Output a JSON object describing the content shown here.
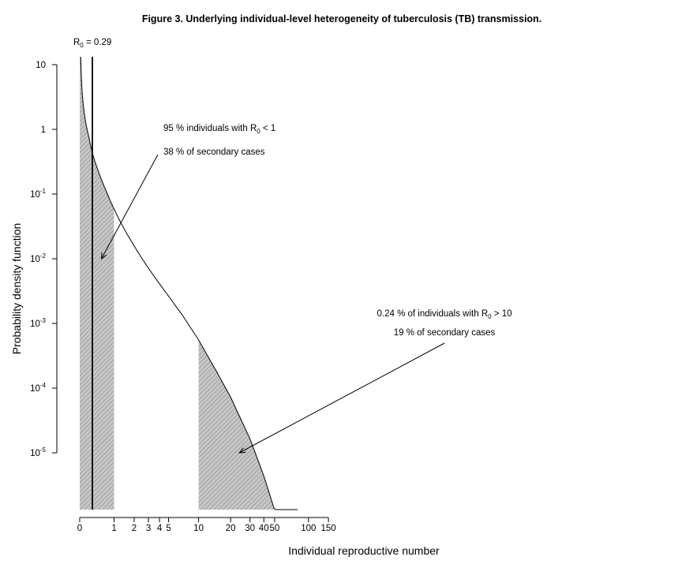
{
  "chart_data": {
    "type": "area",
    "title": "Figure 3. Underlying individual-level heterogeneity of tuberculosis (TB) transmission.",
    "xlabel": "Individual reproductive number",
    "ylabel": "Probability density function",
    "y_scale": "log",
    "x_scale": "log(1+x)",
    "x_ticks": [
      "0",
      "1",
      "2",
      "3",
      "4",
      "5",
      "10",
      "20",
      "30",
      "40",
      "50",
      "100",
      "150"
    ],
    "y_ticks": [
      {
        "value": 10,
        "base": "10",
        "exp": ""
      },
      {
        "value": 1,
        "base": "1",
        "exp": ""
      },
      {
        "value": 0.1,
        "base": "10",
        "exp": "-1"
      },
      {
        "value": 0.01,
        "base": "10",
        "exp": "-2"
      },
      {
        "value": 0.001,
        "base": "10",
        "exp": "-3"
      },
      {
        "value": 0.0001,
        "base": "10",
        "exp": "-4"
      },
      {
        "value": 1e-05,
        "base": "10",
        "exp": "-5"
      }
    ],
    "series": [
      {
        "x": [
          0.02,
          0.05,
          0.1,
          0.2,
          0.29,
          0.4,
          0.5,
          0.7,
          1,
          1.5,
          2,
          3,
          4,
          5,
          7,
          10,
          15,
          20,
          30,
          40,
          50,
          60,
          70,
          80
        ],
        "y": [
          13.3,
          3.79,
          1.7,
          0.775,
          0.436,
          0.273,
          0.195,
          0.113,
          0.0586,
          0.0272,
          0.0158,
          0.00714,
          0.00411,
          0.00265,
          0.00132,
          0.000557,
          0.000174,
          7.24e-05,
          1.65e-05,
          4.4e-06,
          1.3e-06,
          4.1e-07,
          1.35e-07,
          4.5e-08
        ]
      }
    ],
    "shaded_regions": [
      {
        "from": 0,
        "to": 1,
        "pattern": "hatched"
      },
      {
        "from": 10,
        "to": 80,
        "pattern": "hatched"
      }
    ],
    "vertical_line": {
      "x": 0.29,
      "label_main": "R",
      "label_sub": "0",
      "label_rest": " = 0.29"
    },
    "annotations": [
      {
        "line1_a": "95 % individuals with R",
        "line1_sub": "0",
        "line1_b": " < 1",
        "line2": "38 % of secondary cases",
        "arrow_target_x": 0.55,
        "arrow_target_y": 0.01
      },
      {
        "line1_a": "0.24 % of individuals with R",
        "line1_sub": "0",
        "line1_b": " > 10",
        "line2": "19 % of secondary cases",
        "arrow_target_x": 24,
        "arrow_target_y": 1e-05
      }
    ],
    "grid": false,
    "legend": "none"
  }
}
